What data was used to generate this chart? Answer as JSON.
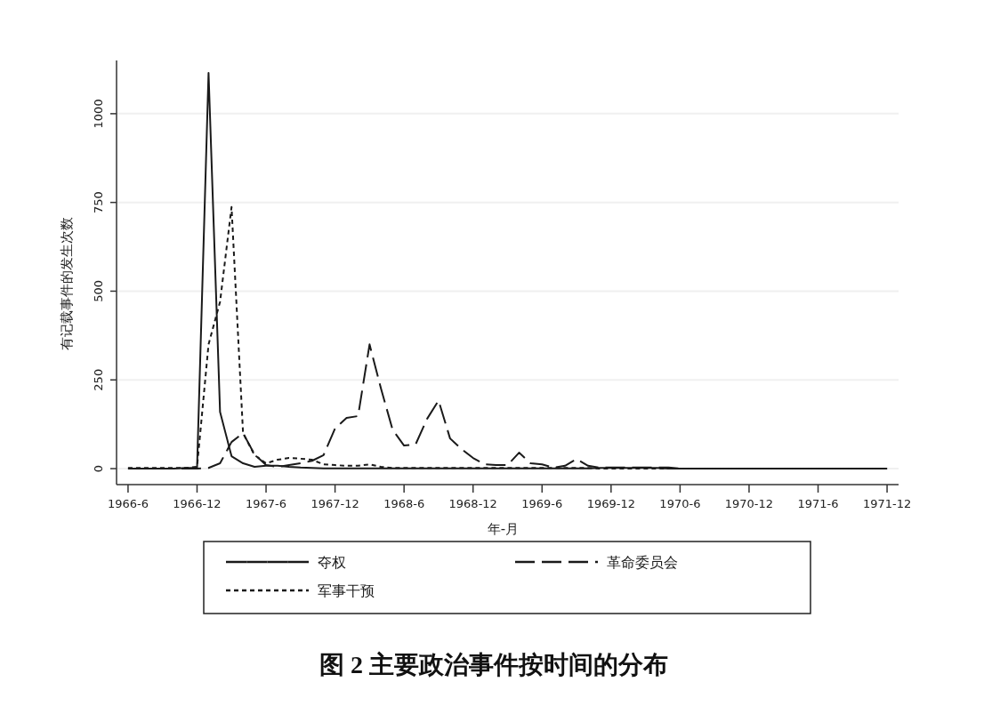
{
  "chart_data": {
    "type": "line",
    "title": "图 2  主要政治事件按时间的分布",
    "xlabel": "年-月",
    "ylabel": "有记载事件的发生次数",
    "x": [
      "1966-06",
      "1966-07",
      "1966-08",
      "1966-09",
      "1966-10",
      "1966-11",
      "1966-12",
      "1967-01",
      "1967-02",
      "1967-03",
      "1967-04",
      "1967-05",
      "1967-06",
      "1967-07",
      "1967-08",
      "1967-09",
      "1967-10",
      "1967-11",
      "1967-12",
      "1968-01",
      "1968-02",
      "1968-03",
      "1968-04",
      "1968-05",
      "1968-06",
      "1968-07",
      "1968-08",
      "1968-09",
      "1968-10",
      "1968-11",
      "1968-12",
      "1969-01",
      "1969-02",
      "1969-03",
      "1969-04",
      "1969-05",
      "1969-06",
      "1969-07",
      "1969-08",
      "1969-09",
      "1969-10",
      "1969-11",
      "1969-12",
      "1970-01",
      "1970-02",
      "1970-03",
      "1970-04",
      "1970-05",
      "1970-06",
      "1970-07",
      "1970-08",
      "1970-09",
      "1970-10",
      "1970-11",
      "1970-12",
      "1971-01",
      "1971-02",
      "1971-03",
      "1971-04",
      "1971-05",
      "1971-06",
      "1971-07",
      "1971-08",
      "1971-09",
      "1971-10",
      "1971-11",
      "1971-12"
    ],
    "xlim": [
      "1966-05",
      "1972-01"
    ],
    "xticks": [
      {
        "value": "1966-06",
        "label": "1966-6"
      },
      {
        "value": "1966-12",
        "label": "1966-12"
      },
      {
        "value": "1967-06",
        "label": "1967-6"
      },
      {
        "value": "1967-12",
        "label": "1967-12"
      },
      {
        "value": "1968-06",
        "label": "1968-6"
      },
      {
        "value": "1968-12",
        "label": "1968-12"
      },
      {
        "value": "1969-06",
        "label": "1969-6"
      },
      {
        "value": "1969-12",
        "label": "1969-12"
      },
      {
        "value": "1970-06",
        "label": "1970-6"
      },
      {
        "value": "1970-12",
        "label": "1970-12"
      },
      {
        "value": "1971-06",
        "label": "1971-6"
      },
      {
        "value": "1971-12",
        "label": "1971-12"
      }
    ],
    "ylim": [
      -45,
      1150
    ],
    "yticks": [
      0,
      250,
      500,
      750,
      1000
    ],
    "grid": "y",
    "legend": "bottom",
    "series": [
      {
        "name": "夺权",
        "color": "#1a1a1a",
        "line_style": "solid",
        "values": [
          0,
          0,
          0,
          0,
          0,
          2,
          2,
          1115,
          160,
          35,
          15,
          5,
          8,
          8,
          5,
          3,
          2,
          1,
          1,
          1,
          1,
          1,
          1,
          1,
          1,
          1,
          1,
          1,
          1,
          1,
          1,
          1,
          1,
          1,
          1,
          1,
          1,
          1,
          1,
          1,
          1,
          2,
          2,
          2,
          2,
          2,
          2,
          0,
          0,
          0,
          0,
          0,
          0,
          0,
          0,
          0,
          0,
          0,
          0,
          0,
          0,
          0,
          0,
          0,
          0,
          0,
          0
        ]
      },
      {
        "name": "革命委员会",
        "color": "#1a1a1a",
        "line_style": "dashed",
        "values": [
          0,
          0,
          0,
          0,
          0,
          0,
          0,
          2,
          15,
          75,
          100,
          40,
          10,
          5,
          10,
          15,
          22,
          38,
          113,
          143,
          148,
          350,
          225,
          110,
          65,
          68,
          140,
          192,
          85,
          55,
          30,
          12,
          10,
          10,
          45,
          15,
          12,
          3,
          8,
          27,
          8,
          3,
          3,
          3,
          3,
          3,
          3,
          3,
          0,
          0,
          0,
          0,
          0,
          0,
          0,
          0,
          0,
          0,
          0,
          0,
          0,
          0,
          0,
          0,
          0,
          0,
          0
        ]
      },
      {
        "name": "军事干预",
        "color": "#1a1a1a",
        "line_style": "dotted",
        "values": [
          2,
          2,
          2,
          2,
          2,
          2,
          5,
          350,
          470,
          737,
          100,
          38,
          15,
          25,
          30,
          28,
          25,
          12,
          10,
          8,
          8,
          12,
          5,
          2,
          2,
          2,
          2,
          2,
          2,
          2,
          2,
          2,
          2,
          2,
          2,
          2,
          2,
          2,
          2,
          2,
          2,
          0,
          0,
          0,
          0,
          0,
          0,
          0,
          0,
          0,
          0,
          0,
          0,
          0,
          0,
          0,
          0,
          0,
          0,
          0,
          0,
          0,
          0,
          0,
          0,
          0,
          0
        ]
      }
    ]
  }
}
